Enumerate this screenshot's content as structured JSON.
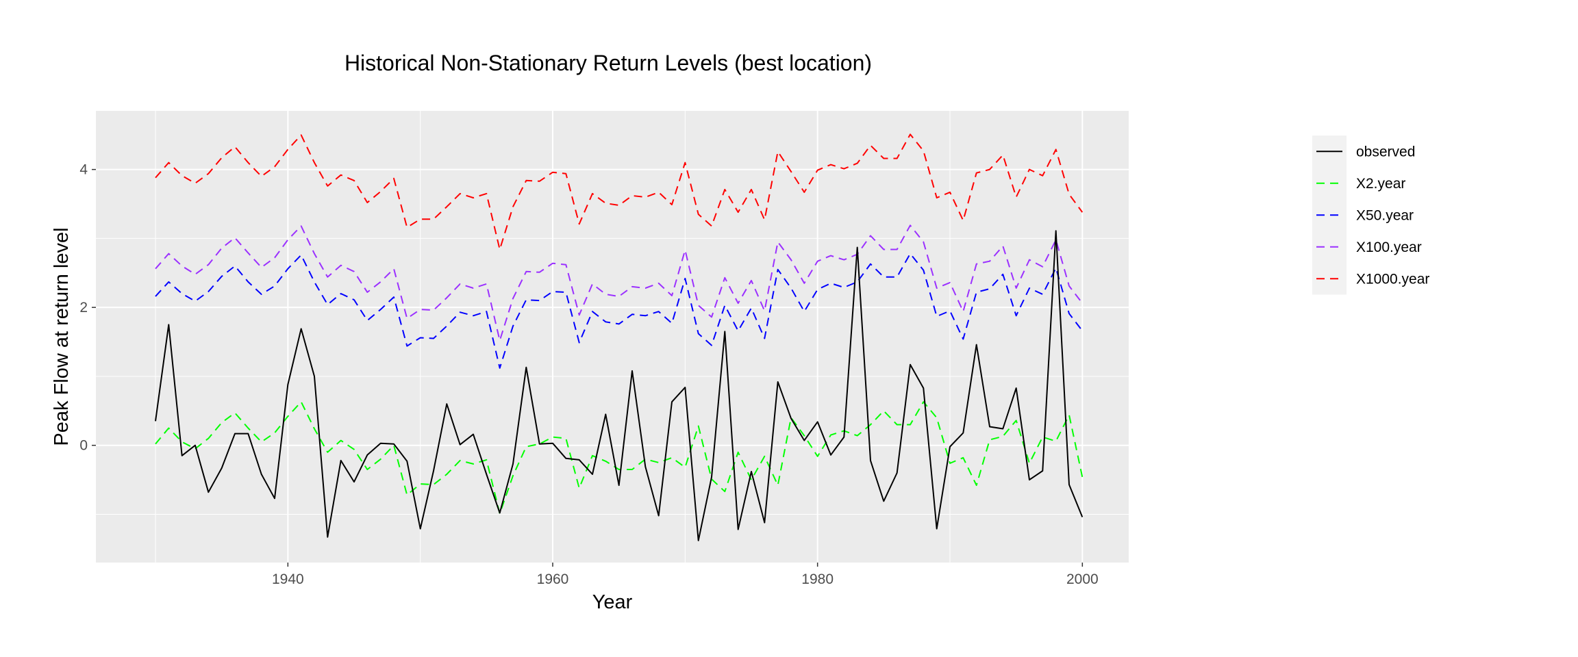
{
  "chart_data": {
    "type": "line",
    "title": "Historical Non-Stationary Return Levels (best location)",
    "xlabel": "Year",
    "ylabel": "Peak Flow at return level",
    "xlim": [
      1925.5,
      2003.5
    ],
    "ylim": [
      -1.7,
      4.85
    ],
    "x_ticks": [
      1940,
      1960,
      1980,
      2000
    ],
    "y_ticks": [
      0,
      2,
      4
    ],
    "grid": true,
    "legend_position": "right",
    "x": [
      1930,
      1931,
      1932,
      1933,
      1934,
      1935,
      1936,
      1937,
      1938,
      1939,
      1940,
      1941,
      1942,
      1943,
      1944,
      1945,
      1946,
      1947,
      1948,
      1949,
      1950,
      1951,
      1952,
      1953,
      1954,
      1955,
      1956,
      1957,
      1958,
      1959,
      1960,
      1961,
      1962,
      1963,
      1964,
      1965,
      1966,
      1967,
      1968,
      1969,
      1970,
      1971,
      1972,
      1973,
      1974,
      1975,
      1976,
      1977,
      1978,
      1979,
      1980,
      1981,
      1982,
      1983,
      1984,
      1985,
      1986,
      1987,
      1988,
      1989,
      1990,
      1991,
      1992,
      1993,
      1994,
      1995,
      1996,
      1997,
      1998,
      1999,
      2000
    ],
    "series": [
      {
        "name": "observed",
        "color": "#000000",
        "dashed": false,
        "values": [
          0.35,
          1.75,
          -0.15,
          0.0,
          -0.68,
          -0.33,
          0.17,
          0.17,
          -0.42,
          -0.77,
          0.88,
          1.69,
          1.0,
          -1.33,
          -0.22,
          -0.53,
          -0.14,
          0.03,
          0.02,
          -0.23,
          -1.21,
          -0.37,
          0.6,
          0.01,
          0.16,
          -0.42,
          -0.98,
          -0.27,
          1.13,
          0.02,
          0.03,
          -0.19,
          -0.21,
          -0.42,
          0.45,
          -0.58,
          1.08,
          -0.31,
          -1.02,
          0.63,
          0.84,
          -1.38,
          -0.46,
          1.65,
          -1.22,
          -0.38,
          -1.12,
          0.92,
          0.39,
          0.07,
          0.34,
          -0.14,
          0.12,
          2.87,
          -0.22,
          -0.81,
          -0.4,
          1.17,
          0.83,
          -1.21,
          -0.02,
          0.18,
          1.46,
          0.27,
          0.24,
          0.83,
          -0.5,
          -0.37,
          3.11,
          -0.57,
          -1.04
        ]
      },
      {
        "name": "X2.year",
        "color": "#00ff00",
        "dashed": true,
        "values": [
          0.02,
          0.25,
          0.05,
          -0.05,
          0.1,
          0.33,
          0.47,
          0.25,
          0.05,
          0.18,
          0.42,
          0.63,
          0.24,
          -0.1,
          0.07,
          -0.06,
          -0.35,
          -0.2,
          0.0,
          -0.72,
          -0.56,
          -0.57,
          -0.42,
          -0.22,
          -0.27,
          -0.21,
          -0.99,
          -0.44,
          -0.02,
          0.02,
          0.12,
          0.1,
          -0.62,
          -0.15,
          -0.23,
          -0.35,
          -0.35,
          -0.2,
          -0.25,
          -0.18,
          -0.32,
          0.28,
          -0.49,
          -0.67,
          -0.1,
          -0.5,
          -0.16,
          -0.58,
          0.4,
          0.14,
          -0.16,
          0.15,
          0.21,
          0.14,
          0.3,
          0.5,
          0.3,
          0.3,
          0.63,
          0.4,
          -0.26,
          -0.18,
          -0.58,
          0.08,
          0.13,
          0.36,
          -0.26,
          0.12,
          0.06,
          0.44,
          -0.46
        ]
      },
      {
        "name": "X50.year",
        "color": "#0000ff",
        "dashed": true,
        "values": [
          2.16,
          2.37,
          2.2,
          2.09,
          2.23,
          2.45,
          2.6,
          2.37,
          2.19,
          2.31,
          2.56,
          2.76,
          2.37,
          2.04,
          2.2,
          2.11,
          1.81,
          1.97,
          2.15,
          1.44,
          1.56,
          1.55,
          1.73,
          1.93,
          1.88,
          1.94,
          1.12,
          1.73,
          2.11,
          2.1,
          2.23,
          2.22,
          1.49,
          1.94,
          1.79,
          1.76,
          1.9,
          1.88,
          1.94,
          1.77,
          2.42,
          1.62,
          1.45,
          2.03,
          1.66,
          1.99,
          1.55,
          2.55,
          2.28,
          1.94,
          2.26,
          2.35,
          2.29,
          2.37,
          2.63,
          2.44,
          2.44,
          2.78,
          2.54,
          1.87,
          1.95,
          1.54,
          2.22,
          2.27,
          2.48,
          1.88,
          2.28,
          2.19,
          2.57,
          1.91,
          1.66
        ]
      },
      {
        "name": "X100.year",
        "color": "#9b30ff",
        "dashed": true,
        "values": [
          2.56,
          2.78,
          2.6,
          2.48,
          2.62,
          2.86,
          3.01,
          2.79,
          2.58,
          2.72,
          2.98,
          3.18,
          2.78,
          2.44,
          2.61,
          2.52,
          2.22,
          2.37,
          2.56,
          1.84,
          1.97,
          1.96,
          2.14,
          2.34,
          2.28,
          2.34,
          1.52,
          2.13,
          2.52,
          2.51,
          2.64,
          2.62,
          1.89,
          2.34,
          2.19,
          2.16,
          2.3,
          2.28,
          2.35,
          2.17,
          2.83,
          2.03,
          1.86,
          2.43,
          2.06,
          2.39,
          1.95,
          2.95,
          2.69,
          2.35,
          2.67,
          2.75,
          2.69,
          2.77,
          3.04,
          2.84,
          2.84,
          3.19,
          2.95,
          2.28,
          2.36,
          1.94,
          2.63,
          2.67,
          2.89,
          2.28,
          2.69,
          2.59,
          2.98,
          2.31,
          2.06
        ]
      },
      {
        "name": "X1000.year",
        "color": "#ff0000",
        "dashed": true,
        "values": [
          3.88,
          4.1,
          3.91,
          3.8,
          3.94,
          4.17,
          4.33,
          4.1,
          3.9,
          4.04,
          4.29,
          4.5,
          4.1,
          3.76,
          3.92,
          3.84,
          3.52,
          3.68,
          3.87,
          3.16,
          3.28,
          3.28,
          3.46,
          3.65,
          3.59,
          3.65,
          2.84,
          3.46,
          3.84,
          3.83,
          3.96,
          3.94,
          3.21,
          3.65,
          3.51,
          3.48,
          3.62,
          3.6,
          3.67,
          3.49,
          4.1,
          3.35,
          3.18,
          3.71,
          3.38,
          3.71,
          3.27,
          4.26,
          3.97,
          3.67,
          3.99,
          4.07,
          4.01,
          4.09,
          4.35,
          4.16,
          4.16,
          4.51,
          4.27,
          3.59,
          3.67,
          3.26,
          3.95,
          4.0,
          4.21,
          3.6,
          4.0,
          3.91,
          4.29,
          3.64,
          3.38
        ]
      }
    ]
  }
}
